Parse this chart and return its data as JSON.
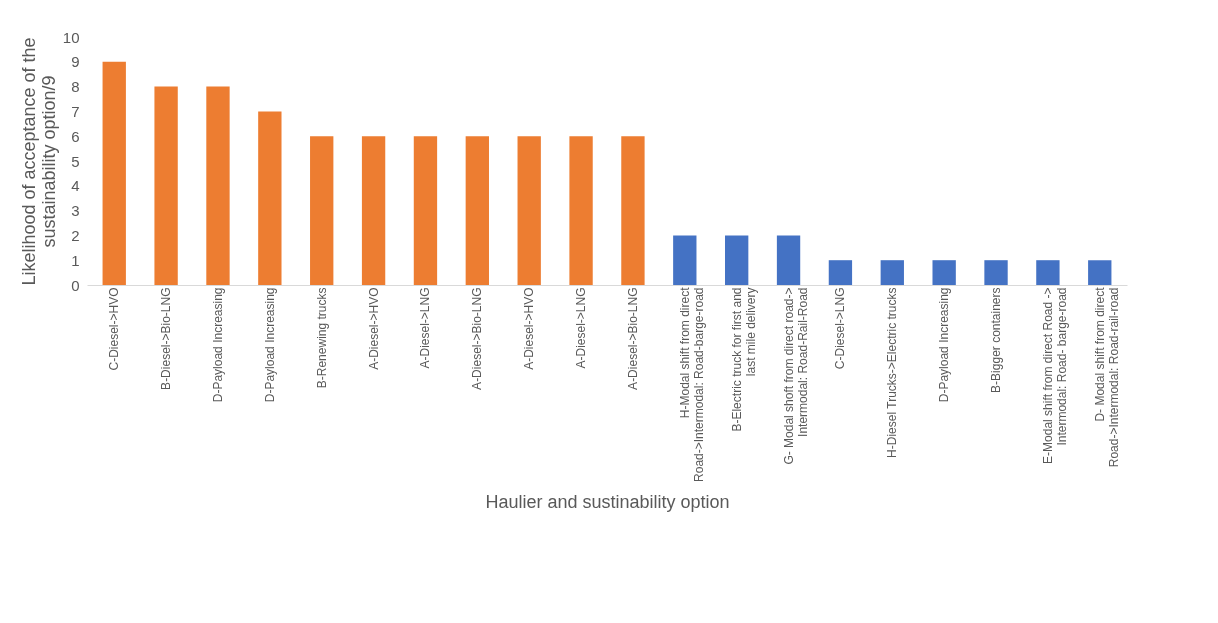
{
  "chart_data": {
    "type": "bar",
    "xlabel": "Haulier and sustinability option",
    "ylabel": "Likelihood of acceptance of the sustainability option/9",
    "categories": [
      "C-Diesel->HVO",
      "B-Diesel->Bio-LNG",
      "D-Payload Increasing",
      "D-Payload Increasing",
      "B-Renewing trucks",
      "A-Diesel->HVO",
      "A-Diesel->LNG",
      "A-Diesel->Bio-LNG",
      "A-Diesel->HVO",
      "A-Diesel->LNG",
      "A-Diesel->Bio-LNG",
      "H-Modal shift from direct Road->Intermodal: Road-barge-road",
      "B-Electric truck for first and last mile delivery",
      "G- Modal shoft from direct road-> Intermodal: Road-Rail-Road",
      "C-Diesel->LNG",
      "H-Diesel Trucks->Electric trucks",
      "D-Payload Increasing",
      "B-Bigger containers",
      "E-Modal shift from direct Road -> Intermodal: Road- barge-road",
      "D- Modal shift from direct Road->Intermodal: Road-rail-road"
    ],
    "values": [
      9,
      8,
      8,
      7,
      6,
      6,
      6,
      6,
      6,
      6,
      6,
      2,
      2,
      2,
      1,
      1,
      1,
      1,
      1,
      1
    ],
    "colors": [
      "#ed7d31",
      "#ed7d31",
      "#ed7d31",
      "#ed7d31",
      "#ed7d31",
      "#ed7d31",
      "#ed7d31",
      "#ed7d31",
      "#ed7d31",
      "#ed7d31",
      "#ed7d31",
      "#4472c4",
      "#4472c4",
      "#4472c4",
      "#4472c4",
      "#4472c4",
      "#4472c4",
      "#4472c4",
      "#4472c4",
      "#4472c4"
    ],
    "ylim": [
      0,
      10
    ],
    "yticks": [
      0,
      1,
      2,
      3,
      4,
      5,
      6,
      7,
      8,
      9,
      10
    ],
    "grid": false
  }
}
